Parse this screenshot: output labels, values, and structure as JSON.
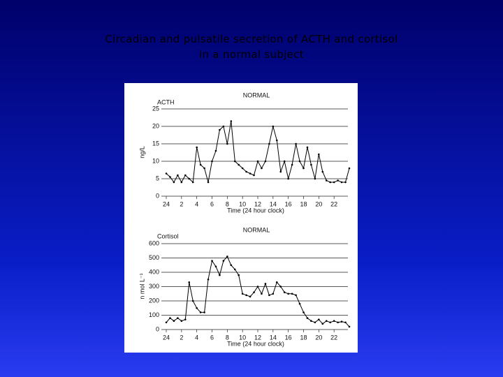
{
  "slide_title": [
    "Circadian and pulsatile secretion of ACTH and cortisol",
    "in a normal subject"
  ],
  "chart_data": [
    {
      "type": "line",
      "title": "NORMAL",
      "subtitle": "ACTH",
      "y_label": "ng/L",
      "x_label": "Time (24 hour clock)",
      "x": [
        0,
        0.5,
        1,
        1.5,
        2,
        2.5,
        3,
        3.5,
        4,
        4.5,
        5,
        5.5,
        6,
        6.5,
        7,
        7.5,
        8,
        8.5,
        9,
        9.5,
        10,
        10.5,
        11,
        11.5,
        12,
        12.5,
        13,
        13.5,
        14,
        14.5,
        15,
        15.5,
        16,
        16.5,
        17,
        17.5,
        18,
        18.5,
        19,
        19.5,
        20,
        20.5,
        21,
        21.5,
        22,
        22.5,
        23,
        23.5,
        24
      ],
      "series": [
        {
          "name": "ACTH",
          "color": "#000000",
          "values": [
            6.5,
            5.5,
            4,
            6,
            4,
            6,
            5,
            4,
            14,
            9,
            8,
            4,
            10,
            13,
            19,
            20,
            15,
            21.5,
            10,
            9,
            8,
            7,
            6.5,
            6,
            10,
            8,
            10,
            15,
            20,
            16,
            7,
            10,
            5,
            9,
            15,
            10,
            8,
            14,
            9,
            5,
            12,
            7,
            4.5,
            4,
            4,
            4.5,
            4,
            4,
            8
          ]
        }
      ],
      "xlim": [
        0,
        24
      ],
      "ylim": [
        0,
        25
      ],
      "xticks": [
        {
          "value": 0,
          "label": "24"
        },
        2,
        4,
        6,
        8,
        10,
        12,
        14,
        16,
        18,
        20,
        22
      ],
      "yticks": [
        0,
        5,
        10,
        15,
        20,
        25
      ],
      "grid": true
    },
    {
      "type": "line",
      "title": "NORMAL",
      "subtitle": "Cortisol",
      "y_label": "n mol L⁻¹",
      "x_label": "Time (24 hour clock)",
      "x": [
        0,
        0.5,
        1,
        1.5,
        2,
        2.5,
        3,
        3.5,
        4,
        4.5,
        5,
        5.5,
        6,
        6.5,
        7,
        7.5,
        8,
        8.5,
        9,
        9.5,
        10,
        10.5,
        11,
        11.5,
        12,
        12.5,
        13,
        13.5,
        14,
        14.5,
        15,
        15.5,
        16,
        16.5,
        17,
        17.5,
        18,
        18.5,
        19,
        19.5,
        20,
        20.5,
        21,
        21.5,
        22,
        22.5,
        23,
        23.5,
        24
      ],
      "series": [
        {
          "name": "Cortisol",
          "color": "#000000",
          "values": [
            50,
            80,
            60,
            80,
            60,
            70,
            330,
            200,
            150,
            120,
            120,
            350,
            480,
            440,
            380,
            480,
            510,
            450,
            420,
            380,
            250,
            240,
            230,
            260,
            300,
            250,
            320,
            240,
            250,
            330,
            300,
            260,
            250,
            250,
            240,
            180,
            120,
            80,
            60,
            50,
            70,
            40,
            60,
            50,
            60,
            50,
            55,
            50,
            20
          ]
        }
      ],
      "xlim": [
        0,
        24
      ],
      "ylim": [
        0,
        600
      ],
      "xticks": [
        {
          "value": 0,
          "label": "24"
        },
        2,
        4,
        6,
        8,
        10,
        12,
        14,
        16,
        18,
        20,
        22
      ],
      "yticks": [
        0,
        100,
        200,
        300,
        400,
        500,
        600
      ],
      "grid": true
    }
  ]
}
